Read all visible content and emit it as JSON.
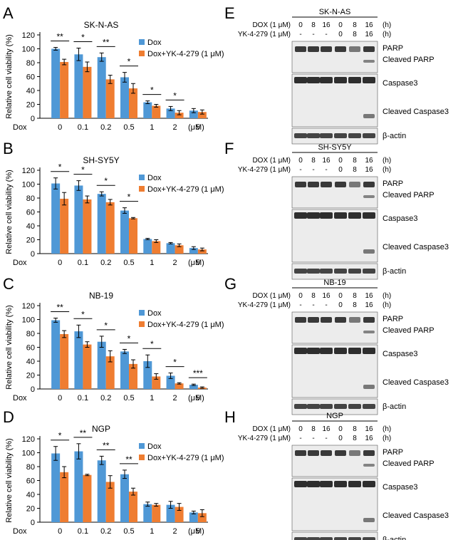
{
  "colors": {
    "dox": "#4f98d6",
    "combo": "#ef7d31",
    "axis": "#000000",
    "blotBg": "#ececec",
    "band": "#1a1a1a"
  },
  "common": {
    "ylabel": "Relative cell viability (%)",
    "yticks": [
      "0",
      "20",
      "40",
      "60",
      "80",
      "100",
      "120"
    ],
    "xprefix": "Dox",
    "xunit": "(μM)",
    "categories": [
      "0",
      "0.1",
      "0.2",
      "0.5",
      "1",
      "2",
      "5"
    ],
    "legend_dox": "Dox",
    "legend_combo": "Dox+YK-4-279 (1 μM)"
  },
  "chart_data": [
    {
      "panel": "A",
      "type": "bar",
      "title": "SK-N-AS",
      "categories": [
        "0",
        "0.1",
        "0.2",
        "0.5",
        "1",
        "2",
        "5"
      ],
      "series": [
        {
          "name": "Dox",
          "values": [
            100,
            92,
            88,
            59,
            23,
            14,
            11
          ],
          "errors": [
            2,
            9,
            6,
            7,
            2,
            3,
            3
          ]
        },
        {
          "name": "Dox+YK-4-279 (1 μM)",
          "values": [
            81,
            74,
            56,
            43,
            18,
            8,
            9
          ],
          "errors": [
            4,
            7,
            6,
            7,
            2,
            3,
            3
          ]
        }
      ],
      "significance": [
        "**",
        "*",
        "**",
        "*",
        "*",
        "*",
        ""
      ],
      "ylim": [
        0,
        120
      ],
      "xlabel": "Dox (μM)",
      "ylabel": "Relative cell viability (%)"
    },
    {
      "panel": "B",
      "type": "bar",
      "title": "SH-SY5Y",
      "categories": [
        "0",
        "0.1",
        "0.2",
        "0.5",
        "1",
        "2",
        "5"
      ],
      "series": [
        {
          "name": "Dox",
          "values": [
            101,
            98,
            86,
            62,
            21,
            15,
            8
          ],
          "errors": [
            8,
            7,
            3,
            4,
            1,
            1,
            2
          ]
        },
        {
          "name": "Dox+YK-4-279 (1 μM)",
          "values": [
            79,
            78,
            74,
            51,
            18,
            12,
            6
          ],
          "errors": [
            9,
            5,
            4,
            1,
            2,
            2,
            2
          ]
        }
      ],
      "significance": [
        "*",
        "*",
        "*",
        "*",
        "",
        "",
        ""
      ],
      "ylim": [
        0,
        120
      ],
      "xlabel": "Dox (μM)",
      "ylabel": "Relative cell viability (%)"
    },
    {
      "panel": "C",
      "type": "bar",
      "title": "NB-19",
      "categories": [
        "0",
        "0.1",
        "0.2",
        "0.5",
        "1",
        "2",
        "5"
      ],
      "series": [
        {
          "name": "Dox",
          "values": [
            99,
            83,
            68,
            54,
            40,
            19,
            6
          ],
          "errors": [
            3,
            9,
            8,
            3,
            9,
            4,
            1
          ]
        },
        {
          "name": "Dox+YK-4-279 (1 μM)",
          "values": [
            79,
            64,
            47,
            36,
            18,
            8,
            2
          ],
          "errors": [
            5,
            4,
            8,
            6,
            4,
            1,
            1
          ]
        }
      ],
      "significance": [
        "**",
        "*",
        "*",
        "*",
        "*",
        "*",
        "***"
      ],
      "ylim": [
        0,
        120
      ],
      "xlabel": "Dox (μM)",
      "ylabel": "Relative cell viability (%)"
    },
    {
      "panel": "D",
      "type": "bar",
      "title": "NGP",
      "categories": [
        "0",
        "0.1",
        "0.2",
        "0.5",
        "1",
        "2",
        "5"
      ],
      "series": [
        {
          "name": "Dox",
          "values": [
            99,
            102,
            89,
            69,
            26,
            25,
            14
          ],
          "errors": [
            10,
            11,
            6,
            6,
            3,
            5,
            2
          ]
        },
        {
          "name": "Dox+YK-4-279 (1 μM)",
          "values": [
            72,
            68,
            58,
            44,
            25,
            22,
            13
          ],
          "errors": [
            8,
            1,
            9,
            5,
            2,
            5,
            5
          ]
        }
      ],
      "significance": [
        "*",
        "**",
        "**",
        "**",
        "",
        "",
        ""
      ],
      "ylim": [
        0,
        120
      ],
      "xlabel": "Dox (μM)",
      "ylabel": "Relative cell viability (%)"
    }
  ],
  "blots": [
    {
      "panel": "E",
      "cell": "SK-N-AS",
      "dox_label": "DOX (1 μM)",
      "yk_label": "YK-4-279 (1 μM)",
      "dox": [
        "0",
        "8",
        "16",
        "0",
        "8",
        "16"
      ],
      "yk": [
        "-",
        "-",
        "-",
        "0",
        "8",
        "16"
      ],
      "unit": "(h)",
      "rows": [
        "PARP",
        "Cleaved PARP",
        "Caspase3",
        "Cleaved Caspase3",
        "β-actin"
      ]
    },
    {
      "panel": "F",
      "cell": "SH-SY5Y",
      "dox_label": "DOX (1 μM)",
      "yk_label": "YK-4-279 (1 μM)",
      "dox": [
        "0",
        "8",
        "16",
        "0",
        "8",
        "16"
      ],
      "yk": [
        "-",
        "-",
        "-",
        "0",
        "8",
        "16"
      ],
      "unit": "(h)",
      "rows": [
        "PARP",
        "Cleaved PARP",
        "Caspase3",
        "Cleaved Caspase3",
        "β-actin"
      ]
    },
    {
      "panel": "G",
      "cell": "NB-19",
      "dox_label": "DOX (1 μM)",
      "yk_label": "YK-4-279 (1 μM)",
      "dox": [
        "0",
        "8",
        "16",
        "0",
        "8",
        "16"
      ],
      "yk": [
        "-",
        "-",
        "-",
        "0",
        "8",
        "16"
      ],
      "unit": "(h)",
      "rows": [
        "PARP",
        "Cleaved PARP",
        "Caspase3",
        "Cleaved Caspase3",
        "β-actin"
      ]
    },
    {
      "panel": "H",
      "cell": "NGP",
      "dox_label": "DOX (1 μM)",
      "yk_label": "YK-4-279 (1 μM)",
      "dox": [
        "0",
        "8",
        "16",
        "0",
        "8",
        "16"
      ],
      "yk": [
        "-",
        "-",
        "-",
        "0",
        "8",
        "16"
      ],
      "unit": "(h)",
      "rows": [
        "PARP",
        "Cleaved PARP",
        "Caspase3",
        "Cleaved Caspase3",
        "β-actin"
      ]
    }
  ]
}
